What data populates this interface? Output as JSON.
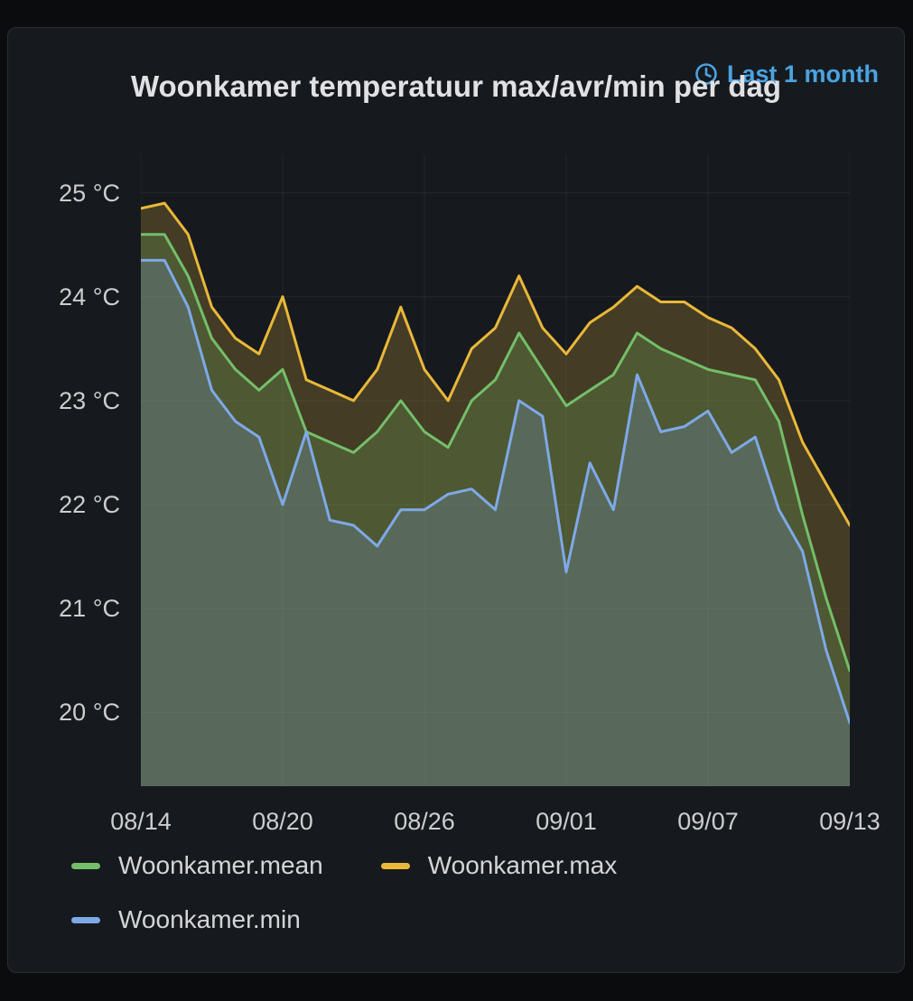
{
  "header": {
    "title": "Woonkamer temperatuur max/avr/min per dag",
    "time_range": "Last 1 month"
  },
  "legend": {
    "items": [
      {
        "label": "Woonkamer.mean",
        "color": "#73BF69"
      },
      {
        "label": "Woonkamer.max",
        "color": "#EAB839"
      },
      {
        "label": "Woonkamer.min",
        "color": "#7EA9E8"
      }
    ]
  },
  "colors": {
    "background": "#0B0C0E",
    "panel_background": "#161A1F",
    "time_range_blue": "#4AA3E0",
    "axis_label": "#CCCDD0"
  },
  "chart_data": {
    "type": "area",
    "title": "Woonkamer temperatuur max/avr/min per dag",
    "xlabel": "",
    "ylabel": "",
    "grid": true,
    "legend_position": "bottom",
    "ylim": [
      19.29,
      25.37
    ],
    "y_ticks": [
      25,
      24,
      23,
      22,
      21,
      20
    ],
    "y_tick_suffix": " °C",
    "x": [
      "08/14",
      "08/15",
      "08/16",
      "08/17",
      "08/18",
      "08/19",
      "08/20",
      "08/21",
      "08/22",
      "08/23",
      "08/24",
      "08/25",
      "08/26",
      "08/27",
      "08/28",
      "08/29",
      "08/30",
      "08/31",
      "09/01",
      "09/02",
      "09/03",
      "09/04",
      "09/05",
      "09/06",
      "09/07",
      "09/08",
      "09/09",
      "09/10",
      "09/11",
      "09/12",
      "09/13"
    ],
    "x_tick_labels": [
      "08/14",
      "08/20",
      "08/26",
      "09/01",
      "09/07",
      "09/13"
    ],
    "x_tick_indices": [
      0,
      6,
      12,
      18,
      24,
      30
    ],
    "series": [
      {
        "name": "Woonkamer.mean",
        "color": "#73BF69",
        "values": [
          24.6,
          24.6,
          24.2,
          23.6,
          23.3,
          23.1,
          23.3,
          22.7,
          22.6,
          22.5,
          22.7,
          23.0,
          22.7,
          22.55,
          23.0,
          23.2,
          23.65,
          23.3,
          22.95,
          23.1,
          23.25,
          23.65,
          23.5,
          23.4,
          23.3,
          23.25,
          23.2,
          22.8,
          21.9,
          21.1,
          20.4
        ]
      },
      {
        "name": "Woonkamer.max",
        "color": "#EAB839",
        "values": [
          24.85,
          24.9,
          24.6,
          23.9,
          23.6,
          23.45,
          24.0,
          23.2,
          23.1,
          23.0,
          23.3,
          23.9,
          23.3,
          23.0,
          23.5,
          23.7,
          24.2,
          23.7,
          23.45,
          23.75,
          23.9,
          24.1,
          23.95,
          23.95,
          23.8,
          23.7,
          23.5,
          23.2,
          22.6,
          22.2,
          21.8
        ]
      },
      {
        "name": "Woonkamer.min",
        "color": "#7EA9E8",
        "values": [
          24.35,
          24.35,
          23.9,
          23.1,
          22.8,
          22.65,
          22.0,
          22.7,
          21.85,
          21.8,
          21.6,
          21.95,
          21.95,
          22.1,
          22.15,
          21.95,
          23.0,
          22.85,
          21.35,
          22.4,
          21.95,
          23.25,
          22.7,
          22.75,
          22.9,
          22.5,
          22.65,
          21.95,
          21.55,
          20.6,
          19.9
        ]
      }
    ]
  }
}
